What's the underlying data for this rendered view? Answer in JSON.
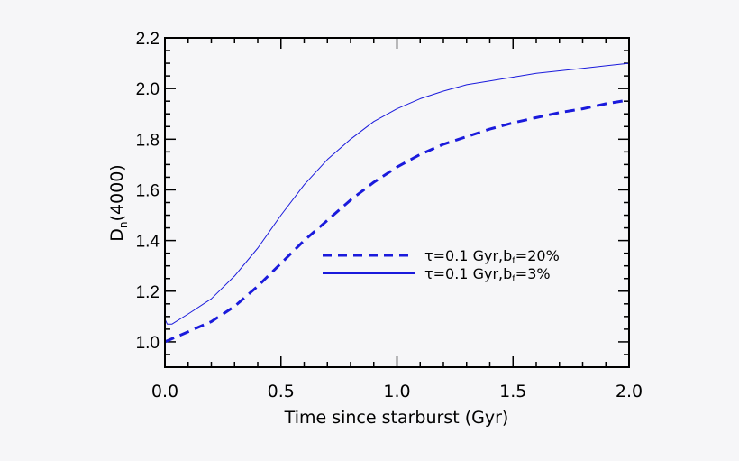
{
  "chart_data": {
    "type": "line",
    "title": "",
    "xlabel": "Time since starburst (Gyr)",
    "ylabel": {
      "main": "D",
      "sub": "n",
      "rest": "(4000)"
    },
    "xlim": [
      0.0,
      2.0
    ],
    "ylim": [
      0.9,
      2.2
    ],
    "xticks": [
      "0.0",
      "0.5",
      "1.0",
      "1.5",
      "2.0"
    ],
    "xtick_values": [
      0.0,
      0.5,
      1.0,
      1.5,
      2.0
    ],
    "yticks": [
      "1.0",
      "1.2",
      "1.4",
      "1.6",
      "1.8",
      "2.0",
      "2.2"
    ],
    "ytick_values": [
      1.0,
      1.2,
      1.4,
      1.6,
      1.8,
      2.0,
      2.2
    ],
    "x_minor_step": 0.1,
    "y_minor_step": 0.05,
    "grid": false,
    "legend_placement": "center-right",
    "series": [
      {
        "name": "τ=0.1 Gyr,b_f=20%",
        "label": {
          "prefix": "τ=0.1  Gyr,b",
          "sub": "f",
          "suffix": "=20%"
        },
        "style": "dashed",
        "color": "#1a1adc",
        "x": [
          0,
          0.1,
          0.2,
          0.3,
          0.4,
          0.5,
          0.6,
          0.7,
          0.8,
          0.9,
          1.0,
          1.1,
          1.2,
          1.3,
          1.4,
          1.5,
          1.6,
          1.7,
          1.8,
          1.9,
          2.0
        ],
        "y": [
          1.0,
          1.04,
          1.08,
          1.14,
          1.22,
          1.31,
          1.4,
          1.48,
          1.56,
          1.63,
          1.69,
          1.74,
          1.78,
          1.81,
          1.84,
          1.865,
          1.885,
          1.905,
          1.92,
          1.94,
          1.955
        ]
      },
      {
        "name": "τ=0.1 Gyr,b_f=3%",
        "label": {
          "prefix": "τ=0.1  Gyr,b",
          "sub": "f",
          "suffix": "=3%"
        },
        "style": "solid",
        "color": "#1a1adc",
        "x": [
          0,
          0.01,
          0.03,
          0.1,
          0.2,
          0.3,
          0.4,
          0.5,
          0.6,
          0.7,
          0.8,
          0.9,
          1.0,
          1.1,
          1.2,
          1.3,
          1.4,
          1.5,
          1.6,
          1.7,
          1.8,
          1.9,
          2.0
        ],
        "y": [
          1.09,
          1.07,
          1.07,
          1.11,
          1.17,
          1.26,
          1.37,
          1.5,
          1.62,
          1.72,
          1.8,
          1.87,
          1.92,
          1.96,
          1.99,
          2.015,
          2.03,
          2.045,
          2.06,
          2.07,
          2.08,
          2.09,
          2.1
        ]
      }
    ]
  }
}
